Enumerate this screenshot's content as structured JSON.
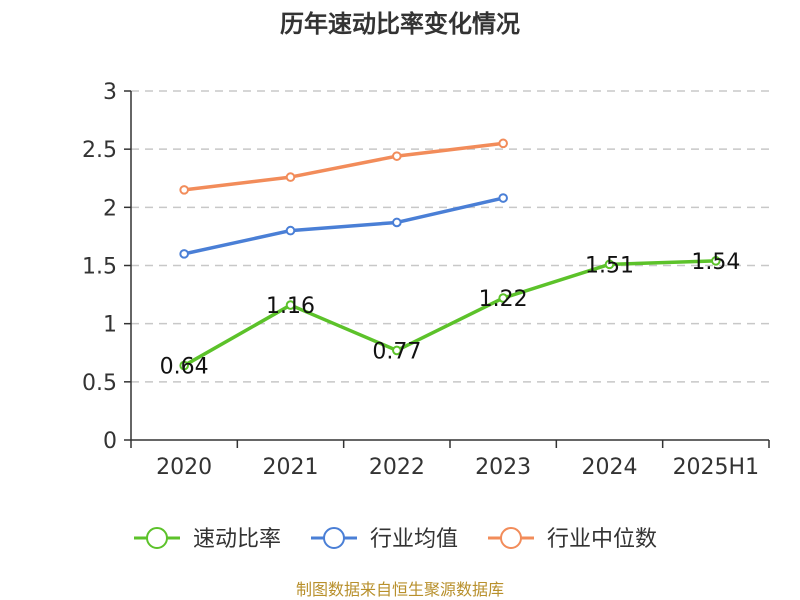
{
  "chart_data": {
    "type": "line",
    "title": "历年速动比率变化情况",
    "categories": [
      "2020",
      "2021",
      "2022",
      "2023",
      "2024",
      "2025H1"
    ],
    "ylim": [
      0,
      3
    ],
    "yticks": [
      "0",
      "0.5",
      "1",
      "1.5",
      "2",
      "2.5",
      "3"
    ],
    "grid": true,
    "legend_position": "bottom",
    "series": [
      {
        "name": "速动比率",
        "color": "#5cc22a",
        "values": [
          0.64,
          1.16,
          0.77,
          1.22,
          1.51,
          1.54
        ],
        "labels": [
          "0.64",
          "1.16",
          "0.77",
          "1.22",
          "1.51",
          "1.54"
        ]
      },
      {
        "name": "行业均值",
        "color": "#4a7fd6",
        "values": [
          1.6,
          1.8,
          1.87,
          2.08,
          null,
          null
        ]
      },
      {
        "name": "行业中位数",
        "color": "#f28c5a",
        "values": [
          2.15,
          2.26,
          2.44,
          2.55,
          null,
          null
        ]
      }
    ]
  },
  "footer": {
    "source": "制图数据来自恒生聚源数据库"
  }
}
